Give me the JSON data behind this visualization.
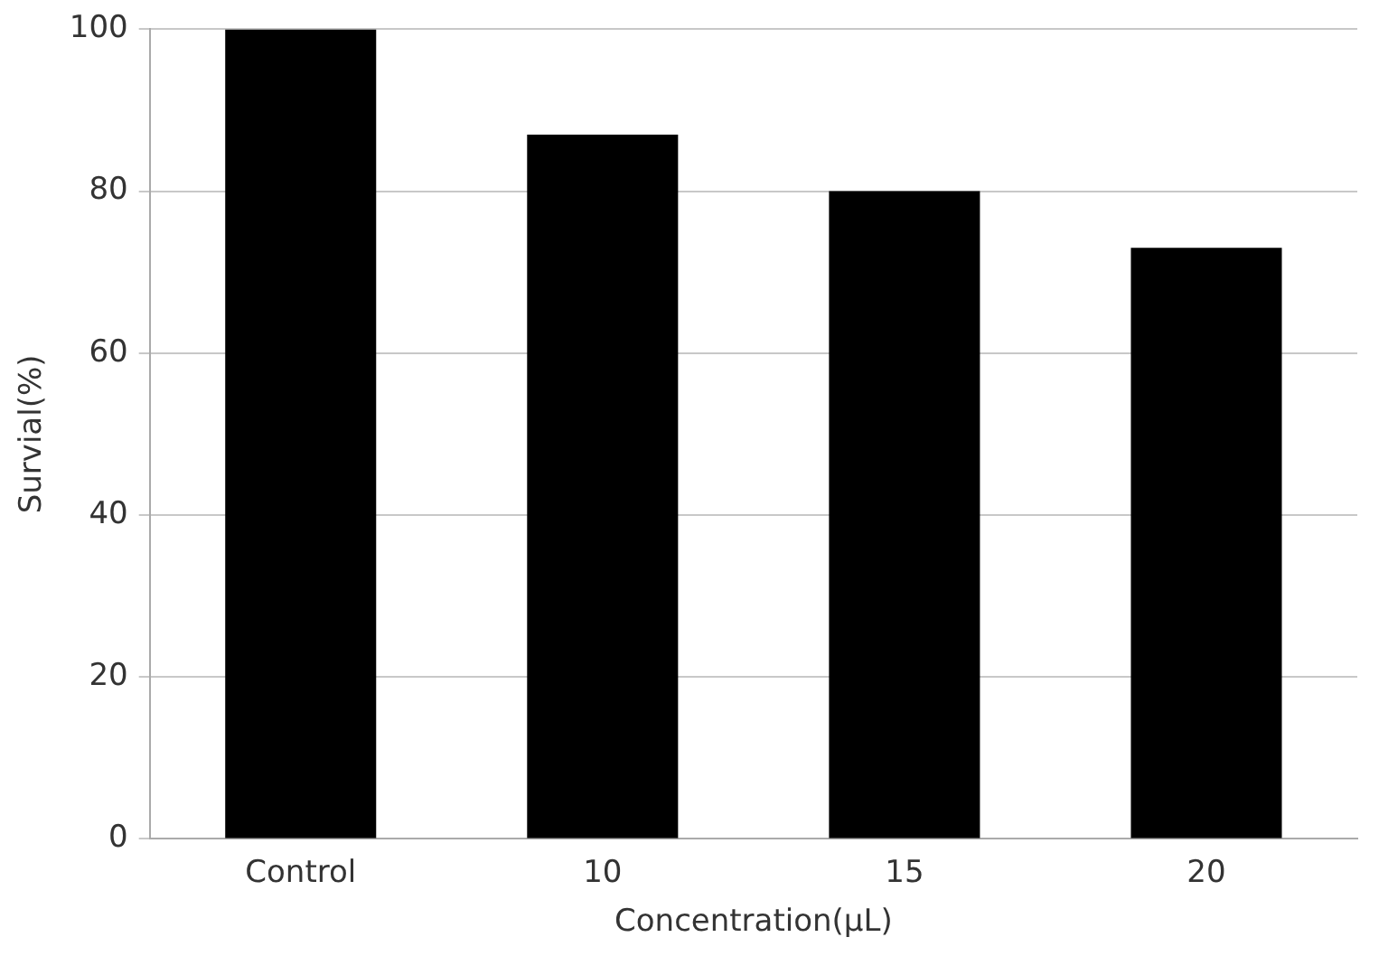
{
  "chart_data": {
    "type": "bar",
    "xlabel": "Concentration(μL)",
    "ylabel": "Survial(%)",
    "categories": [
      "Control",
      "10",
      "15",
      "20"
    ],
    "values": [
      100,
      87,
      80,
      73
    ],
    "color": "#000000",
    "ylim": [
      0,
      100
    ],
    "yticks": [
      0,
      20,
      40,
      60,
      80,
      100
    ],
    "grid": "y",
    "legend": false
  }
}
